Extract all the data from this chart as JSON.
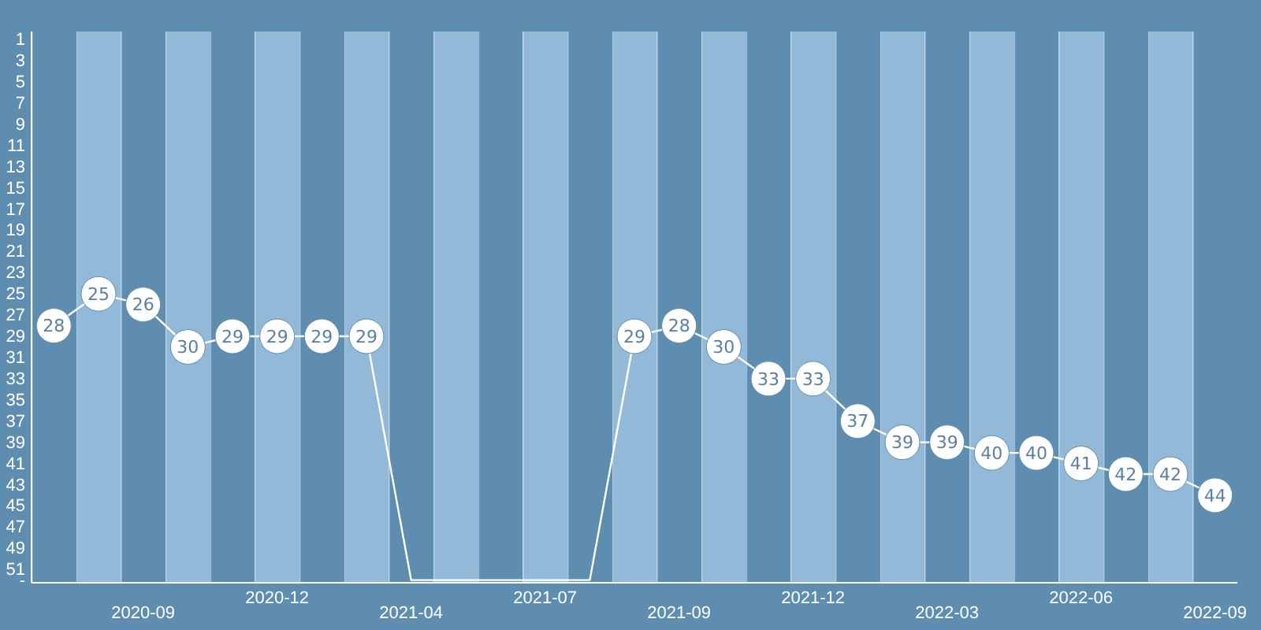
{
  "chart_data": {
    "type": "line",
    "categories": [
      null,
      null,
      "2020-09",
      null,
      null,
      "2020-12",
      null,
      null,
      "2021-04",
      null,
      null,
      "2021-07",
      null,
      null,
      "2021-09",
      null,
      null,
      "2021-12",
      null,
      null,
      "2022-03",
      null,
      null,
      "2022-06",
      null,
      null,
      "2022-09"
    ],
    "series": [
      {
        "color": "#ffffff",
        "values": [
          28,
          25,
          26,
          30,
          29,
          29,
          29,
          29,
          52,
          52,
          52,
          52,
          52,
          29,
          28,
          30,
          33,
          33,
          37,
          39,
          39,
          40,
          40,
          41,
          42,
          42,
          44
        ],
        "value_labels": [
          "28",
          "25",
          "26",
          "30",
          "29",
          "29",
          "29",
          "29",
          null,
          null,
          null,
          null,
          null,
          "29",
          "28",
          "30",
          "33",
          "33",
          "37",
          "39",
          "39",
          "40",
          "40",
          "41",
          "42",
          "42",
          "44"
        ]
      }
    ],
    "ylim": [
      52.25,
      0.25
    ],
    "yticks": [
      1,
      3,
      5,
      7,
      9,
      11,
      13,
      15,
      17,
      19,
      21,
      23,
      25,
      27,
      29,
      31,
      33,
      35,
      37,
      39,
      41,
      43,
      45,
      47,
      49,
      51,
      {
        "value": 52,
        "label": "-"
      }
    ],
    "marker": "circle",
    "line_style": "solid",
    "grid": false
  }
}
